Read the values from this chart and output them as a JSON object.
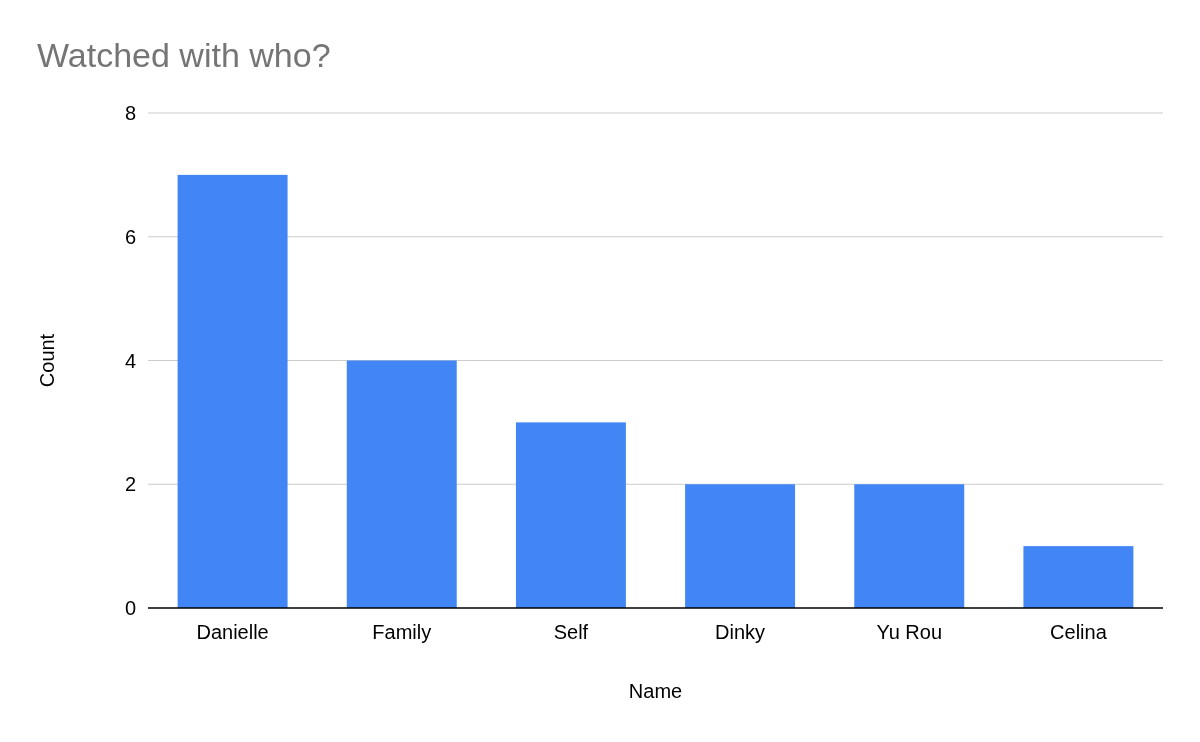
{
  "chart_data": {
    "type": "bar",
    "title": "Watched with who?",
    "xlabel": "Name",
    "ylabel": "Count",
    "categories": [
      "Danielle",
      "Family",
      "Self",
      "Dinky",
      "Yu Rou",
      "Celina"
    ],
    "values": [
      7,
      4,
      3,
      2,
      2,
      1
    ],
    "color": "#4285f4",
    "ylim": [
      0,
      8
    ],
    "yticks": [
      0,
      2,
      4,
      6,
      8
    ],
    "grid": "y"
  }
}
